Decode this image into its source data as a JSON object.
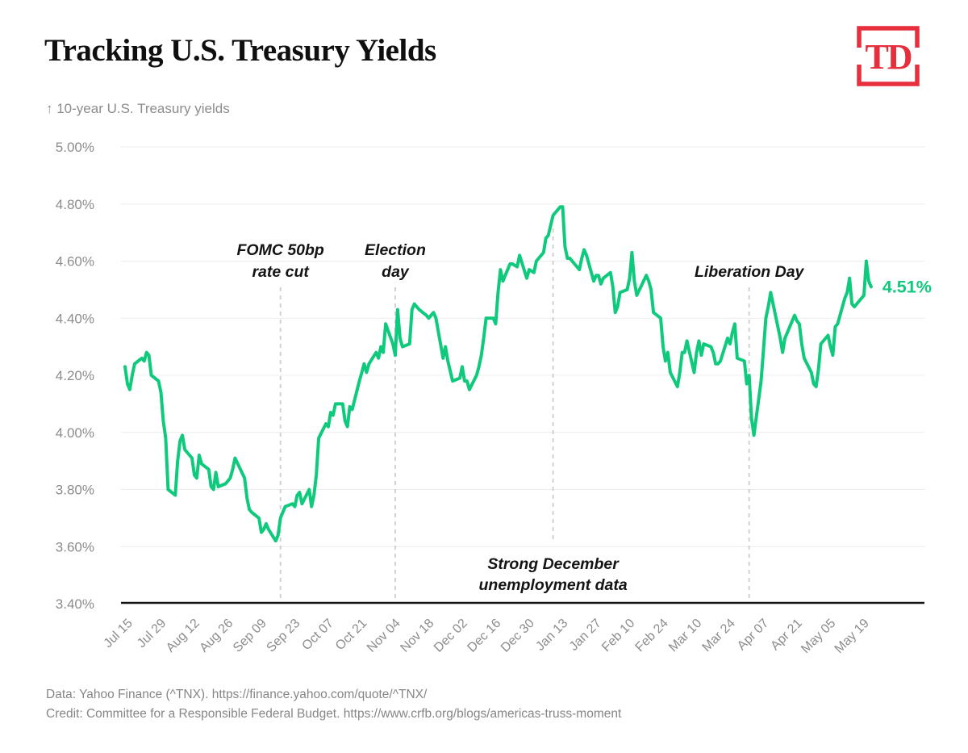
{
  "header": {
    "title": "Tracking U.S. Treasury Yields",
    "logo_text": "TD"
  },
  "subtitle": "↑ 10-year U.S. Treasury yields",
  "footer": {
    "line1": "Data: Yahoo Finance (^TNX). https://finance.yahoo.com/quote/^TNX/",
    "line2": "Credit: Committee for a Responsible Federal Budget. https://www.crfb.org/blogs/americas-truss-moment"
  },
  "colors": {
    "accent_green": "#0fca7d",
    "logo_red": "#e62e3c",
    "axis_black": "#161616",
    "grid_gray": "#ececec",
    "dash_gray": "#cdcdcd",
    "label_gray": "#8c8c8c",
    "annotation_black": "#141414"
  },
  "chart_data": {
    "type": "line",
    "title": "Tracking U.S. Treasury Yields",
    "ylabel": "10-year U.S. Treasury yields",
    "xlabel": "",
    "grid": true,
    "legend": "none",
    "ylim": [
      3.4,
      5.0
    ],
    "y_ticks": [
      "5.00%",
      "4.80%",
      "4.60%",
      "4.40%",
      "4.20%",
      "4.00%",
      "3.80%",
      "3.60%",
      "3.40%"
    ],
    "x_tick_labels": [
      "Jul 15",
      "Jul 29",
      "Aug 12",
      "Aug 26",
      "Sep 09",
      "Sep 23",
      "Oct 07",
      "Oct 21",
      "Nov 04",
      "Nov 18",
      "Dec 02",
      "Dec 16",
      "Dec 30",
      "Jan 13",
      "Jan 27",
      "Feb 10",
      "Feb 24",
      "Mar 10",
      "Mar 24",
      "Apr 07",
      "Apr 21",
      "May 05",
      "May 19"
    ],
    "x_tick_dates": [
      "2024-07-15",
      "2024-07-29",
      "2024-08-12",
      "2024-08-26",
      "2024-09-09",
      "2024-09-23",
      "2024-10-07",
      "2024-10-21",
      "2024-11-04",
      "2024-11-18",
      "2024-12-02",
      "2024-12-16",
      "2024-12-30",
      "2025-01-13",
      "2025-01-27",
      "2025-02-10",
      "2025-02-24",
      "2025-03-10",
      "2025-03-24",
      "2025-04-07",
      "2025-04-21",
      "2025-05-05",
      "2025-05-19"
    ],
    "end_label": "4.51%",
    "annotations": [
      {
        "lines": [
          "FOMC 50bp",
          "rate cut"
        ],
        "date": "2024-09-18",
        "text_pos": "top"
      },
      {
        "lines": [
          "Election",
          "day"
        ],
        "date": "2024-11-05",
        "text_pos": "top"
      },
      {
        "lines": [
          "Strong December",
          "unemployment data"
        ],
        "date": "2025-01-10",
        "text_pos": "bottom"
      },
      {
        "lines": [
          "Liberation Day"
        ],
        "date": "2025-04-02",
        "text_pos": "top"
      }
    ],
    "points": [
      [
        "2024-07-15",
        4.23
      ],
      [
        "2024-07-16",
        4.17
      ],
      [
        "2024-07-17",
        4.15
      ],
      [
        "2024-07-18",
        4.2
      ],
      [
        "2024-07-19",
        4.24
      ],
      [
        "2024-07-22",
        4.26
      ],
      [
        "2024-07-23",
        4.25
      ],
      [
        "2024-07-24",
        4.28
      ],
      [
        "2024-07-25",
        4.27
      ],
      [
        "2024-07-26",
        4.2
      ],
      [
        "2024-07-29",
        4.18
      ],
      [
        "2024-07-30",
        4.14
      ],
      [
        "2024-07-31",
        4.04
      ],
      [
        "2024-08-01",
        3.98
      ],
      [
        "2024-08-02",
        3.8
      ],
      [
        "2024-08-05",
        3.78
      ],
      [
        "2024-08-06",
        3.9
      ],
      [
        "2024-08-07",
        3.97
      ],
      [
        "2024-08-08",
        3.99
      ],
      [
        "2024-08-09",
        3.94
      ],
      [
        "2024-08-12",
        3.91
      ],
      [
        "2024-08-13",
        3.85
      ],
      [
        "2024-08-14",
        3.84
      ],
      [
        "2024-08-15",
        3.92
      ],
      [
        "2024-08-16",
        3.89
      ],
      [
        "2024-08-19",
        3.87
      ],
      [
        "2024-08-20",
        3.81
      ],
      [
        "2024-08-21",
        3.8
      ],
      [
        "2024-08-22",
        3.86
      ],
      [
        "2024-08-23",
        3.81
      ],
      [
        "2024-08-26",
        3.82
      ],
      [
        "2024-08-27",
        3.83
      ],
      [
        "2024-08-28",
        3.84
      ],
      [
        "2024-08-29",
        3.87
      ],
      [
        "2024-08-30",
        3.91
      ],
      [
        "2024-09-03",
        3.84
      ],
      [
        "2024-09-04",
        3.77
      ],
      [
        "2024-09-05",
        3.73
      ],
      [
        "2024-09-06",
        3.72
      ],
      [
        "2024-09-09",
        3.7
      ],
      [
        "2024-09-10",
        3.65
      ],
      [
        "2024-09-11",
        3.66
      ],
      [
        "2024-09-12",
        3.68
      ],
      [
        "2024-09-13",
        3.66
      ],
      [
        "2024-09-16",
        3.62
      ],
      [
        "2024-09-17",
        3.64
      ],
      [
        "2024-09-18",
        3.7
      ],
      [
        "2024-09-19",
        3.72
      ],
      [
        "2024-09-20",
        3.74
      ],
      [
        "2024-09-23",
        3.75
      ],
      [
        "2024-09-24",
        3.74
      ],
      [
        "2024-09-25",
        3.78
      ],
      [
        "2024-09-26",
        3.79
      ],
      [
        "2024-09-27",
        3.75
      ],
      [
        "2024-09-30",
        3.8
      ],
      [
        "2024-10-01",
        3.74
      ],
      [
        "2024-10-02",
        3.78
      ],
      [
        "2024-10-03",
        3.85
      ],
      [
        "2024-10-04",
        3.98
      ],
      [
        "2024-10-07",
        4.03
      ],
      [
        "2024-10-08",
        4.02
      ],
      [
        "2024-10-09",
        4.07
      ],
      [
        "2024-10-10",
        4.06
      ],
      [
        "2024-10-11",
        4.1
      ],
      [
        "2024-10-14",
        4.1
      ],
      [
        "2024-10-15",
        4.04
      ],
      [
        "2024-10-16",
        4.02
      ],
      [
        "2024-10-17",
        4.09
      ],
      [
        "2024-10-18",
        4.08
      ],
      [
        "2024-10-21",
        4.18
      ],
      [
        "2024-10-22",
        4.21
      ],
      [
        "2024-10-23",
        4.24
      ],
      [
        "2024-10-24",
        4.21
      ],
      [
        "2024-10-25",
        4.24
      ],
      [
        "2024-10-28",
        4.28
      ],
      [
        "2024-10-29",
        4.26
      ],
      [
        "2024-10-30",
        4.3
      ],
      [
        "2024-10-31",
        4.28
      ],
      [
        "2024-11-01",
        4.38
      ],
      [
        "2024-11-04",
        4.31
      ],
      [
        "2024-11-05",
        4.27
      ],
      [
        "2024-11-06",
        4.43
      ],
      [
        "2024-11-07",
        4.33
      ],
      [
        "2024-11-08",
        4.3
      ],
      [
        "2024-11-11",
        4.31
      ],
      [
        "2024-11-12",
        4.43
      ],
      [
        "2024-11-13",
        4.45
      ],
      [
        "2024-11-14",
        4.44
      ],
      [
        "2024-11-15",
        4.43
      ],
      [
        "2024-11-18",
        4.41
      ],
      [
        "2024-11-19",
        4.4
      ],
      [
        "2024-11-20",
        4.41
      ],
      [
        "2024-11-21",
        4.42
      ],
      [
        "2024-11-22",
        4.4
      ],
      [
        "2024-11-25",
        4.26
      ],
      [
        "2024-11-26",
        4.3
      ],
      [
        "2024-11-27",
        4.25
      ],
      [
        "2024-11-29",
        4.18
      ],
      [
        "2024-12-02",
        4.19
      ],
      [
        "2024-12-03",
        4.23
      ],
      [
        "2024-12-04",
        4.18
      ],
      [
        "2024-12-05",
        4.18
      ],
      [
        "2024-12-06",
        4.15
      ],
      [
        "2024-12-09",
        4.2
      ],
      [
        "2024-12-10",
        4.23
      ],
      [
        "2024-12-11",
        4.27
      ],
      [
        "2024-12-12",
        4.33
      ],
      [
        "2024-12-13",
        4.4
      ],
      [
        "2024-12-16",
        4.4
      ],
      [
        "2024-12-17",
        4.38
      ],
      [
        "2024-12-18",
        4.49
      ],
      [
        "2024-12-19",
        4.57
      ],
      [
        "2024-12-20",
        4.53
      ],
      [
        "2024-12-23",
        4.59
      ],
      [
        "2024-12-24",
        4.59
      ],
      [
        "2024-12-26",
        4.58
      ],
      [
        "2024-12-27",
        4.62
      ],
      [
        "2024-12-30",
        4.54
      ],
      [
        "2024-12-31",
        4.57
      ],
      [
        "2025-01-02",
        4.56
      ],
      [
        "2025-01-03",
        4.6
      ],
      [
        "2025-01-06",
        4.63
      ],
      [
        "2025-01-07",
        4.68
      ],
      [
        "2025-01-08",
        4.69
      ],
      [
        "2025-01-10",
        4.76
      ],
      [
        "2025-01-13",
        4.79
      ],
      [
        "2025-01-14",
        4.79
      ],
      [
        "2025-01-15",
        4.65
      ],
      [
        "2025-01-16",
        4.61
      ],
      [
        "2025-01-17",
        4.61
      ],
      [
        "2025-01-21",
        4.57
      ],
      [
        "2025-01-22",
        4.61
      ],
      [
        "2025-01-23",
        4.64
      ],
      [
        "2025-01-24",
        4.62
      ],
      [
        "2025-01-27",
        4.53
      ],
      [
        "2025-01-28",
        4.55
      ],
      [
        "2025-01-29",
        4.55
      ],
      [
        "2025-01-30",
        4.52
      ],
      [
        "2025-01-31",
        4.54
      ],
      [
        "2025-02-03",
        4.56
      ],
      [
        "2025-02-04",
        4.51
      ],
      [
        "2025-02-05",
        4.42
      ],
      [
        "2025-02-06",
        4.44
      ],
      [
        "2025-02-07",
        4.49
      ],
      [
        "2025-02-10",
        4.5
      ],
      [
        "2025-02-11",
        4.54
      ],
      [
        "2025-02-12",
        4.63
      ],
      [
        "2025-02-13",
        4.53
      ],
      [
        "2025-02-14",
        4.48
      ],
      [
        "2025-02-18",
        4.55
      ],
      [
        "2025-02-19",
        4.53
      ],
      [
        "2025-02-20",
        4.5
      ],
      [
        "2025-02-21",
        4.42
      ],
      [
        "2025-02-24",
        4.4
      ],
      [
        "2025-02-25",
        4.3
      ],
      [
        "2025-02-26",
        4.25
      ],
      [
        "2025-02-27",
        4.28
      ],
      [
        "2025-02-28",
        4.21
      ],
      [
        "2025-03-03",
        4.16
      ],
      [
        "2025-03-04",
        4.21
      ],
      [
        "2025-03-05",
        4.28
      ],
      [
        "2025-03-06",
        4.28
      ],
      [
        "2025-03-07",
        4.32
      ],
      [
        "2025-03-10",
        4.21
      ],
      [
        "2025-03-11",
        4.28
      ],
      [
        "2025-03-12",
        4.32
      ],
      [
        "2025-03-13",
        4.27
      ],
      [
        "2025-03-14",
        4.31
      ],
      [
        "2025-03-17",
        4.3
      ],
      [
        "2025-03-18",
        4.28
      ],
      [
        "2025-03-19",
        4.24
      ],
      [
        "2025-03-20",
        4.24
      ],
      [
        "2025-03-21",
        4.25
      ],
      [
        "2025-03-24",
        4.33
      ],
      [
        "2025-03-25",
        4.31
      ],
      [
        "2025-03-26",
        4.35
      ],
      [
        "2025-03-27",
        4.38
      ],
      [
        "2025-03-28",
        4.26
      ],
      [
        "2025-03-31",
        4.25
      ],
      [
        "2025-04-01",
        4.17
      ],
      [
        "2025-04-02",
        4.2
      ],
      [
        "2025-04-03",
        4.05
      ],
      [
        "2025-04-04",
        3.99
      ],
      [
        "2025-04-07",
        4.18
      ],
      [
        "2025-04-08",
        4.29
      ],
      [
        "2025-04-09",
        4.4
      ],
      [
        "2025-04-10",
        4.44
      ],
      [
        "2025-04-11",
        4.49
      ],
      [
        "2025-04-14",
        4.37
      ],
      [
        "2025-04-15",
        4.33
      ],
      [
        "2025-04-16",
        4.28
      ],
      [
        "2025-04-17",
        4.33
      ],
      [
        "2025-04-21",
        4.41
      ],
      [
        "2025-04-22",
        4.39
      ],
      [
        "2025-04-23",
        4.38
      ],
      [
        "2025-04-24",
        4.31
      ],
      [
        "2025-04-25",
        4.26
      ],
      [
        "2025-04-28",
        4.21
      ],
      [
        "2025-04-29",
        4.17
      ],
      [
        "2025-04-30",
        4.16
      ],
      [
        "2025-05-01",
        4.22
      ],
      [
        "2025-05-02",
        4.31
      ],
      [
        "2025-05-05",
        4.34
      ],
      [
        "2025-05-06",
        4.3
      ],
      [
        "2025-05-07",
        4.27
      ],
      [
        "2025-05-08",
        4.37
      ],
      [
        "2025-05-09",
        4.38
      ],
      [
        "2025-05-12",
        4.47
      ],
      [
        "2025-05-13",
        4.49
      ],
      [
        "2025-05-14",
        4.54
      ],
      [
        "2025-05-15",
        4.45
      ],
      [
        "2025-05-16",
        4.44
      ],
      [
        "2025-05-19",
        4.47
      ],
      [
        "2025-05-20",
        4.48
      ],
      [
        "2025-05-21",
        4.6
      ],
      [
        "2025-05-22",
        4.53
      ],
      [
        "2025-05-23",
        4.51
      ]
    ]
  }
}
